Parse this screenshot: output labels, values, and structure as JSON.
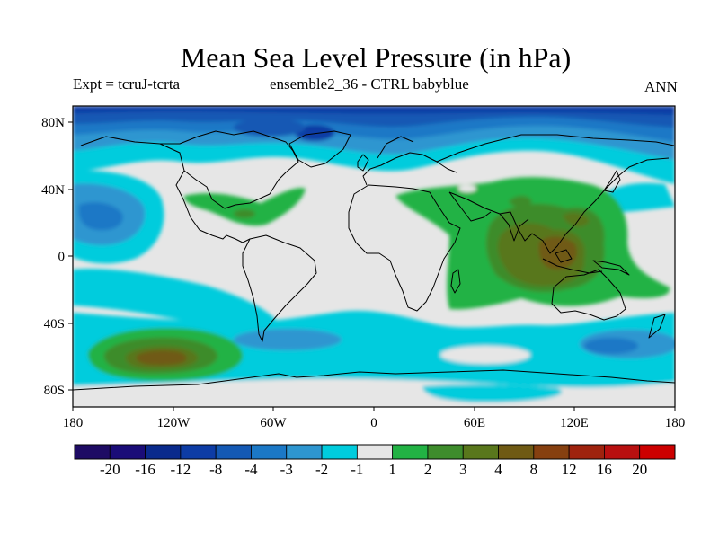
{
  "header": {
    "title": "Mean Sea Level Pressure (in hPa)",
    "expt": "Expt = tcruJ-tcrta",
    "ensemble": "ensemble2_36 - CTRL babyblue",
    "season": "ANN"
  },
  "map": {
    "lon_ticks": [
      "180",
      "120W",
      "60W",
      "0",
      "60E",
      "120E",
      "180"
    ],
    "lat_ticks": [
      "80N",
      "40N",
      "0",
      "40S",
      "80S"
    ]
  },
  "legend": {
    "colors": [
      "#1e0b64",
      "#1a0c78",
      "#0a2a8c",
      "#0d3ca5",
      "#1459b4",
      "#1b78c6",
      "#2e96d0",
      "#00ccdd",
      "#e6e6e6",
      "#22b244",
      "#3e8c2c",
      "#59771c",
      "#6f5a14",
      "#864010",
      "#9f230e",
      "#b81010",
      "#cc0000"
    ],
    "labels": [
      "-20",
      "-16",
      "-12",
      "-8",
      "-4",
      "-3",
      "-2",
      "-1",
      "1",
      "2",
      "3",
      "4",
      "8",
      "12",
      "16",
      "20"
    ]
  }
}
